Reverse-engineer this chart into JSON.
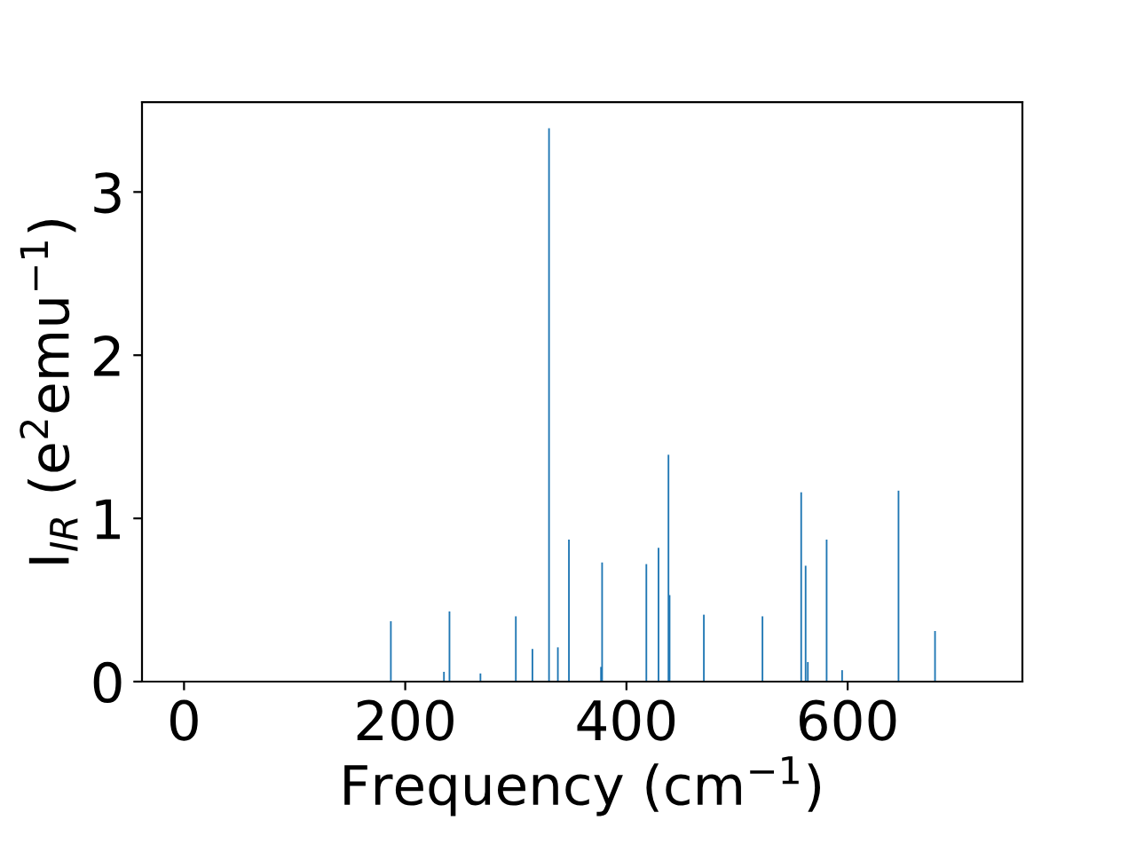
{
  "chart_data": {
    "type": "bar",
    "xlabel": "Frequency (cm$^{−1}$)",
    "ylabel": "I$_{IR}$ (e$^{2}$emu$^{−1}$)",
    "x": [
      187,
      235,
      240,
      268,
      300,
      315,
      330,
      338,
      348,
      377,
      378,
      418,
      429,
      438,
      439,
      470,
      523,
      558,
      562,
      564,
      581,
      595,
      646,
      679
    ],
    "values": [
      0.37,
      0.06,
      0.43,
      0.05,
      0.4,
      0.2,
      3.39,
      0.21,
      0.87,
      0.09,
      0.73,
      0.72,
      0.82,
      1.39,
      0.53,
      0.41,
      0.4,
      1.16,
      0.71,
      0.12,
      0.87,
      0.07,
      1.17,
      0.31
    ],
    "color": "#1f77b4",
    "xlim": [
      -38,
      758
    ],
    "ylim": [
      0,
      3.55
    ],
    "xticks": [
      0,
      200,
      400,
      600
    ],
    "yticks": [
      0,
      1,
      2,
      3
    ],
    "grid": false
  }
}
